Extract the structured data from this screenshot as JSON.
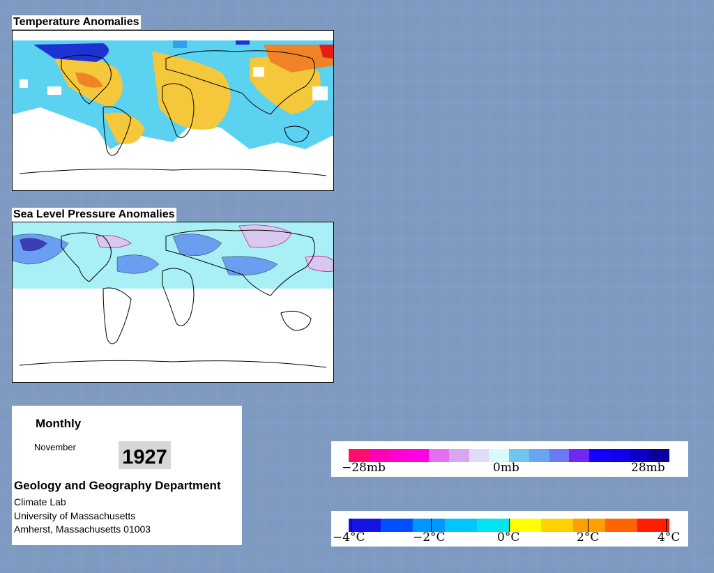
{
  "panels": {
    "temperature_title": "Temperature Anomalies",
    "pressure_title": "Sea Level Pressure Anomalies"
  },
  "info": {
    "period": "Monthly",
    "month": "November",
    "year": "1927",
    "department": "Geology and Geography Department",
    "lab": "Climate Lab",
    "university": "University of Massachusetts",
    "address": "Amherst, Massachusetts 01003"
  },
  "pressure_legend": {
    "labels": [
      "−28mb",
      "0mb",
      "28mb"
    ],
    "colors": [
      "#ff0e6e",
      "#ff00b4",
      "#ff00d2",
      "#ff00e6",
      "#e66ef0",
      "#d9a5ee",
      "#e0dcf7",
      "#d6fbfb",
      "#70c6f0",
      "#6aa5f4",
      "#6b79f4",
      "#6f28f4",
      "#1400ff",
      "#0e00ee",
      "#0a00c8",
      "#0a00a0"
    ]
  },
  "temperature_legend": {
    "labels": [
      "−4°C",
      "−2°C",
      "0°C",
      "2°C",
      "4°C"
    ],
    "colors": [
      "#1414e6",
      "#0050ff",
      "#0096ff",
      "#00c8ff",
      "#00e6f0",
      "#ffff00",
      "#ffd200",
      "#ffa000",
      "#ff6400",
      "#ff1e00"
    ]
  },
  "map_colors": {
    "cold_deep": "#1e32d2",
    "cold": "#32a0f0",
    "cool": "#5ad2f0",
    "warm": "#f5c83c",
    "hot": "#f08228",
    "very_hot": "#e61e14",
    "slp_low": "#a8f0f5",
    "slp_mid": "#6a9ef0",
    "slp_deep": "#3c3cb4",
    "slp_pink": "#d8c8f0"
  }
}
